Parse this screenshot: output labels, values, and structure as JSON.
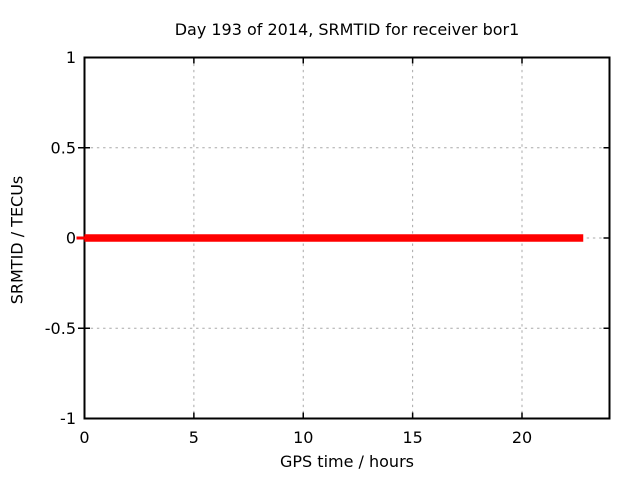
{
  "chart_data": {
    "type": "line",
    "title": "Day 193 of 2014, SRMTID for receiver bor1",
    "xlabel": "GPS time / hours",
    "ylabel": "SRMTID / TECUs",
    "xlim": [
      0,
      24
    ],
    "ylim": [
      -1,
      1
    ],
    "xticks": [
      0,
      5,
      10,
      15,
      20
    ],
    "xtick_labels": [
      "0",
      "5",
      "10",
      "15",
      "20"
    ],
    "yticks": [
      -1,
      -0.5,
      0,
      0.5,
      1
    ],
    "ytick_labels": [
      "-1",
      "-0.5",
      "0",
      "0.5",
      "1"
    ],
    "grid": true,
    "legend": "none",
    "grid_color": "#a8a8a8",
    "border_color": "#000000",
    "text_color": "#000000",
    "background_color": "#ffffff",
    "series": [
      {
        "name": "SRMTID",
        "color": "#ff0000",
        "linewidth": 7.5,
        "x": [
          0,
          22.8
        ],
        "y": [
          0,
          0
        ]
      }
    ]
  }
}
